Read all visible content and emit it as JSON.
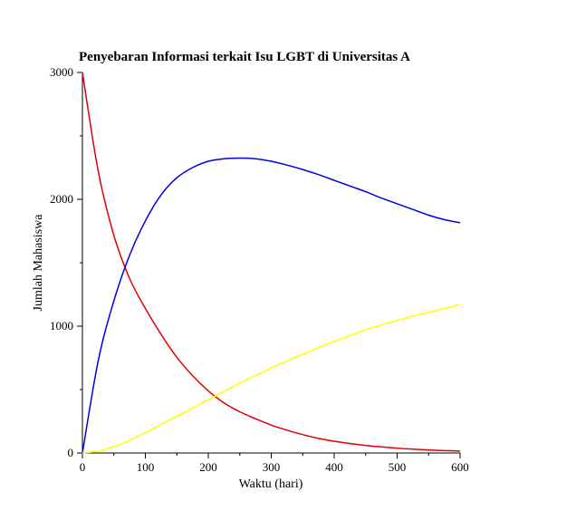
{
  "chart_data": {
    "type": "line",
    "title": "Penyebaran Informasi terkait Isu LGBT di Universitas A",
    "xlabel": "Waktu (hari)",
    "ylabel": "Jumlah Mahasiswa",
    "xlim": [
      0,
      600
    ],
    "ylim": [
      0,
      3000
    ],
    "x_ticks": [
      0,
      100,
      200,
      300,
      400,
      500,
      600
    ],
    "y_ticks": [
      0,
      1000,
      2000,
      3000
    ],
    "grid": false,
    "series": [
      {
        "color": "#e00000",
        "x": [
          0,
          25,
          50,
          75,
          100,
          125,
          150,
          175,
          200,
          225,
          250,
          275,
          300,
          325,
          350,
          375,
          400,
          425,
          450,
          475,
          500,
          525,
          550,
          575,
          600
        ],
        "y": [
          3000,
          2225,
          1715,
          1375,
          1140,
          935,
          755,
          610,
          490,
          395,
          325,
          270,
          220,
          180,
          145,
          115,
          93,
          75,
          60,
          48,
          38,
          30,
          24,
          19,
          15
        ]
      },
      {
        "color": "#0000e0",
        "x": [
          0,
          25,
          50,
          75,
          100,
          125,
          150,
          175,
          200,
          225,
          250,
          275,
          300,
          325,
          350,
          375,
          400,
          425,
          450,
          475,
          500,
          525,
          550,
          575,
          600
        ],
        "y": [
          0,
          725,
          1200,
          1560,
          1830,
          2035,
          2170,
          2250,
          2300,
          2320,
          2325,
          2320,
          2300,
          2270,
          2235,
          2195,
          2150,
          2105,
          2060,
          2010,
          1965,
          1920,
          1875,
          1840,
          1815
        ]
      },
      {
        "color": "#ffff00",
        "x": [
          0,
          25,
          50,
          75,
          100,
          125,
          150,
          175,
          200,
          225,
          250,
          275,
          300,
          325,
          350,
          375,
          400,
          425,
          450,
          475,
          500,
          525,
          550,
          575,
          600
        ],
        "y": [
          0,
          15,
          50,
          100,
          160,
          225,
          290,
          355,
          420,
          485,
          550,
          610,
          670,
          725,
          780,
          830,
          880,
          925,
          970,
          1010,
          1045,
          1080,
          1110,
          1140,
          1170
        ]
      }
    ]
  }
}
